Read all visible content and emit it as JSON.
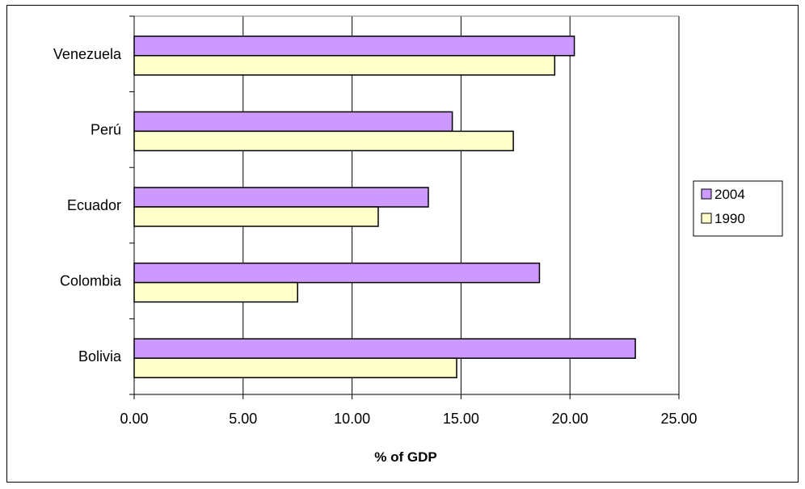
{
  "chart_data": {
    "type": "bar",
    "orientation": "horizontal",
    "title": "",
    "xlabel": "% of GDP",
    "ylabel": "",
    "xlim": [
      0,
      25
    ],
    "x_ticks": [
      "0.00",
      "5.00",
      "10.00",
      "15.00",
      "20.00",
      "25.00"
    ],
    "x_tick_values": [
      0,
      5,
      10,
      15,
      20,
      25
    ],
    "categories": [
      "Bolivia",
      "Colombia",
      "Ecuador",
      "Perú",
      "Venezuela"
    ],
    "series": [
      {
        "name": "2004",
        "color": "#cc99ff",
        "values": [
          23.0,
          18.6,
          13.5,
          14.6,
          20.2
        ]
      },
      {
        "name": "1990",
        "color": "#ffffcc",
        "values": [
          14.8,
          7.5,
          11.2,
          17.4,
          19.3
        ]
      }
    ],
    "grid": true,
    "legend_position": "right"
  }
}
